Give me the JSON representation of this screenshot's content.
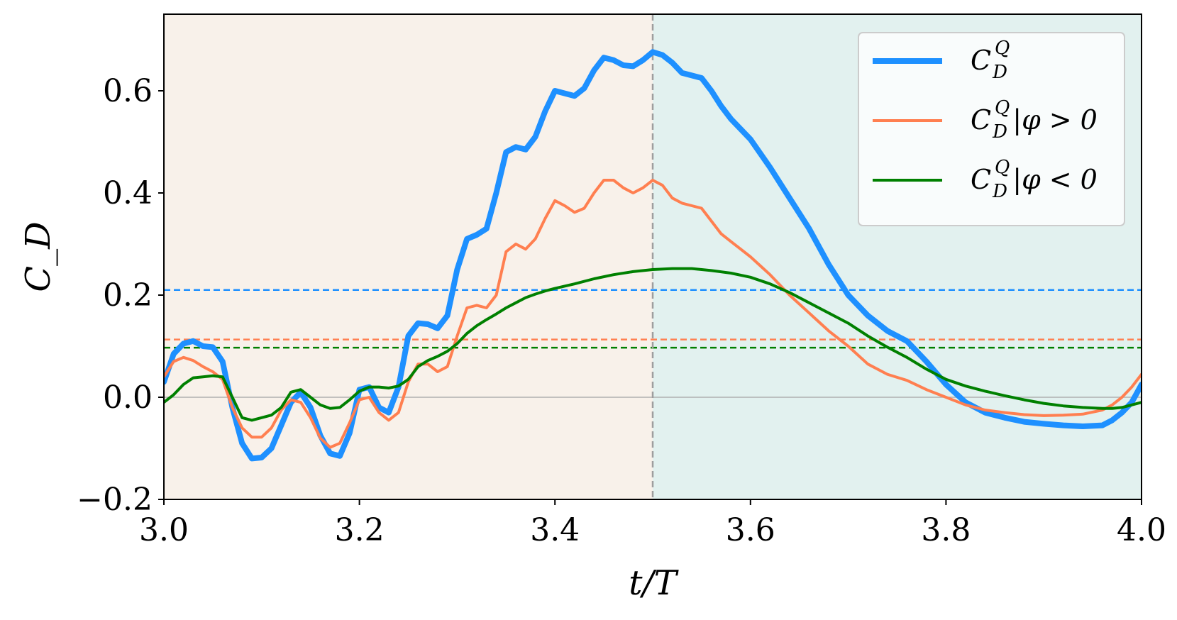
{
  "chart_data": {
    "type": "line",
    "xlabel": "t/T",
    "ylabel": "C_D",
    "xlim": [
      3.0,
      4.0
    ],
    "ylim": [
      -0.2,
      0.75
    ],
    "xticks": [
      3.0,
      3.2,
      3.4,
      3.6,
      3.8,
      4.0
    ],
    "xtick_labels": [
      "3.0",
      "3.2",
      "3.4",
      "3.6",
      "3.8",
      "4.0"
    ],
    "yticks": [
      -0.2,
      0.0,
      0.2,
      0.4,
      0.6
    ],
    "ytick_labels": [
      "−0.2",
      "0.0",
      "0.2",
      "0.4",
      "0.6"
    ],
    "grid": false,
    "legend_position": "top-right",
    "shaded_regions": [
      {
        "x": [
          3.0,
          3.5
        ],
        "color": "#f8f1ea"
      },
      {
        "x": [
          3.5,
          4.0
        ],
        "color": "#e2f1ef"
      }
    ],
    "vertical_lines": [
      {
        "x": 3.5,
        "color": "#9e9e9e",
        "style": "dashed"
      }
    ],
    "horizontal_lines": [
      {
        "y": 0.0,
        "color": "#b0b0b0",
        "style": "solid"
      },
      {
        "y": 0.21,
        "color": "#1e90ff",
        "style": "dashed"
      },
      {
        "y": 0.113,
        "color": "#ff7f50",
        "style": "dashed"
      },
      {
        "y": 0.097,
        "color": "#008000",
        "style": "dashed"
      }
    ],
    "series": [
      {
        "name": "C_D^Q",
        "legend": {
          "base": "C",
          "sub": "D",
          "sup": "Q",
          "suffix": ""
        },
        "color": "#1e90ff",
        "line_width": 8,
        "points": [
          [
            3.0,
            0.03
          ],
          [
            3.01,
            0.085
          ],
          [
            3.02,
            0.105
          ],
          [
            3.03,
            0.11
          ],
          [
            3.04,
            0.1
          ],
          [
            3.05,
            0.098
          ],
          [
            3.06,
            0.07
          ],
          [
            3.07,
            -0.02
          ],
          [
            3.08,
            -0.09
          ],
          [
            3.09,
            -0.12
          ],
          [
            3.1,
            -0.118
          ],
          [
            3.11,
            -0.1
          ],
          [
            3.12,
            -0.055
          ],
          [
            3.13,
            -0.01
          ],
          [
            3.14,
            0.01
          ],
          [
            3.15,
            -0.02
          ],
          [
            3.16,
            -0.075
          ],
          [
            3.17,
            -0.11
          ],
          [
            3.18,
            -0.115
          ],
          [
            3.19,
            -0.07
          ],
          [
            3.2,
            0.015
          ],
          [
            3.21,
            0.02
          ],
          [
            3.22,
            -0.02
          ],
          [
            3.23,
            -0.03
          ],
          [
            3.24,
            0.02
          ],
          [
            3.25,
            0.12
          ],
          [
            3.26,
            0.145
          ],
          [
            3.27,
            0.143
          ],
          [
            3.28,
            0.135
          ],
          [
            3.29,
            0.16
          ],
          [
            3.3,
            0.25
          ],
          [
            3.31,
            0.31
          ],
          [
            3.32,
            0.318
          ],
          [
            3.33,
            0.33
          ],
          [
            3.34,
            0.4
          ],
          [
            3.35,
            0.48
          ],
          [
            3.36,
            0.49
          ],
          [
            3.37,
            0.485
          ],
          [
            3.38,
            0.51
          ],
          [
            3.39,
            0.56
          ],
          [
            3.4,
            0.6
          ],
          [
            3.41,
            0.595
          ],
          [
            3.42,
            0.59
          ],
          [
            3.43,
            0.605
          ],
          [
            3.44,
            0.64
          ],
          [
            3.45,
            0.665
          ],
          [
            3.46,
            0.66
          ],
          [
            3.47,
            0.65
          ],
          [
            3.48,
            0.648
          ],
          [
            3.49,
            0.66
          ],
          [
            3.5,
            0.676
          ],
          [
            3.51,
            0.67
          ],
          [
            3.52,
            0.655
          ],
          [
            3.53,
            0.635
          ],
          [
            3.54,
            0.63
          ],
          [
            3.55,
            0.625
          ],
          [
            3.56,
            0.6
          ],
          [
            3.57,
            0.57
          ],
          [
            3.58,
            0.545
          ],
          [
            3.59,
            0.525
          ],
          [
            3.6,
            0.505
          ],
          [
            3.62,
            0.45
          ],
          [
            3.64,
            0.39
          ],
          [
            3.66,
            0.33
          ],
          [
            3.68,
            0.26
          ],
          [
            3.7,
            0.2
          ],
          [
            3.72,
            0.16
          ],
          [
            3.74,
            0.13
          ],
          [
            3.76,
            0.11
          ],
          [
            3.78,
            0.07
          ],
          [
            3.8,
            0.025
          ],
          [
            3.82,
            -0.01
          ],
          [
            3.84,
            -0.03
          ],
          [
            3.86,
            -0.04
          ],
          [
            3.88,
            -0.048
          ],
          [
            3.9,
            -0.052
          ],
          [
            3.92,
            -0.055
          ],
          [
            3.94,
            -0.057
          ],
          [
            3.96,
            -0.055
          ],
          [
            3.97,
            -0.045
          ],
          [
            3.98,
            -0.03
          ],
          [
            3.99,
            -0.01
          ],
          [
            4.0,
            0.025
          ]
        ]
      },
      {
        "name": "C_D^Q|φ>0",
        "legend": {
          "base": "C",
          "sub": "D",
          "sup": "Q",
          "suffix": "|φ > 0"
        },
        "color": "#ff7f50",
        "line_width": 4,
        "points": [
          [
            3.0,
            0.04
          ],
          [
            3.01,
            0.07
          ],
          [
            3.02,
            0.078
          ],
          [
            3.03,
            0.072
          ],
          [
            3.04,
            0.06
          ],
          [
            3.05,
            0.05
          ],
          [
            3.06,
            0.035
          ],
          [
            3.07,
            -0.02
          ],
          [
            3.08,
            -0.06
          ],
          [
            3.09,
            -0.078
          ],
          [
            3.1,
            -0.078
          ],
          [
            3.11,
            -0.06
          ],
          [
            3.12,
            -0.025
          ],
          [
            3.13,
            -0.005
          ],
          [
            3.14,
            -0.01
          ],
          [
            3.15,
            -0.04
          ],
          [
            3.16,
            -0.08
          ],
          [
            3.17,
            -0.098
          ],
          [
            3.18,
            -0.09
          ],
          [
            3.19,
            -0.05
          ],
          [
            3.2,
            -0.005
          ],
          [
            3.21,
            0.0
          ],
          [
            3.22,
            -0.03
          ],
          [
            3.23,
            -0.045
          ],
          [
            3.24,
            -0.03
          ],
          [
            3.25,
            0.03
          ],
          [
            3.26,
            0.065
          ],
          [
            3.27,
            0.065
          ],
          [
            3.28,
            0.05
          ],
          [
            3.29,
            0.06
          ],
          [
            3.3,
            0.12
          ],
          [
            3.31,
            0.175
          ],
          [
            3.32,
            0.18
          ],
          [
            3.33,
            0.175
          ],
          [
            3.34,
            0.2
          ],
          [
            3.35,
            0.285
          ],
          [
            3.36,
            0.3
          ],
          [
            3.37,
            0.29
          ],
          [
            3.38,
            0.31
          ],
          [
            3.39,
            0.35
          ],
          [
            3.4,
            0.385
          ],
          [
            3.41,
            0.375
          ],
          [
            3.42,
            0.362
          ],
          [
            3.43,
            0.37
          ],
          [
            3.44,
            0.4
          ],
          [
            3.45,
            0.425
          ],
          [
            3.46,
            0.425
          ],
          [
            3.47,
            0.41
          ],
          [
            3.48,
            0.4
          ],
          [
            3.49,
            0.41
          ],
          [
            3.5,
            0.425
          ],
          [
            3.51,
            0.415
          ],
          [
            3.52,
            0.39
          ],
          [
            3.53,
            0.38
          ],
          [
            3.54,
            0.375
          ],
          [
            3.55,
            0.37
          ],
          [
            3.56,
            0.345
          ],
          [
            3.57,
            0.32
          ],
          [
            3.58,
            0.305
          ],
          [
            3.59,
            0.29
          ],
          [
            3.6,
            0.275
          ],
          [
            3.62,
            0.24
          ],
          [
            3.64,
            0.2
          ],
          [
            3.66,
            0.165
          ],
          [
            3.68,
            0.13
          ],
          [
            3.7,
            0.1
          ],
          [
            3.72,
            0.065
          ],
          [
            3.74,
            0.045
          ],
          [
            3.76,
            0.033
          ],
          [
            3.78,
            0.015
          ],
          [
            3.8,
            0.0
          ],
          [
            3.82,
            -0.015
          ],
          [
            3.84,
            -0.025
          ],
          [
            3.86,
            -0.03
          ],
          [
            3.88,
            -0.034
          ],
          [
            3.9,
            -0.036
          ],
          [
            3.92,
            -0.035
          ],
          [
            3.94,
            -0.033
          ],
          [
            3.96,
            -0.025
          ],
          [
            3.97,
            -0.015
          ],
          [
            3.98,
            0.0
          ],
          [
            3.99,
            0.02
          ],
          [
            4.0,
            0.045
          ]
        ]
      },
      {
        "name": "C_D^Q|φ<0",
        "legend": {
          "base": "C",
          "sub": "D",
          "sup": "Q",
          "suffix": "|φ < 0"
        },
        "color": "#008000",
        "line_width": 4,
        "points": [
          [
            3.0,
            -0.01
          ],
          [
            3.01,
            0.005
          ],
          [
            3.02,
            0.025
          ],
          [
            3.03,
            0.038
          ],
          [
            3.04,
            0.04
          ],
          [
            3.05,
            0.042
          ],
          [
            3.06,
            0.04
          ],
          [
            3.07,
            0.0
          ],
          [
            3.08,
            -0.04
          ],
          [
            3.09,
            -0.045
          ],
          [
            3.1,
            -0.04
          ],
          [
            3.11,
            -0.035
          ],
          [
            3.12,
            -0.02
          ],
          [
            3.13,
            0.01
          ],
          [
            3.14,
            0.015
          ],
          [
            3.15,
            0.0
          ],
          [
            3.16,
            -0.015
          ],
          [
            3.17,
            -0.022
          ],
          [
            3.18,
            -0.02
          ],
          [
            3.19,
            -0.005
          ],
          [
            3.2,
            0.012
          ],
          [
            3.21,
            0.02
          ],
          [
            3.22,
            0.02
          ],
          [
            3.23,
            0.018
          ],
          [
            3.24,
            0.022
          ],
          [
            3.25,
            0.035
          ],
          [
            3.26,
            0.06
          ],
          [
            3.27,
            0.072
          ],
          [
            3.28,
            0.08
          ],
          [
            3.29,
            0.09
          ],
          [
            3.3,
            0.105
          ],
          [
            3.31,
            0.125
          ],
          [
            3.32,
            0.14
          ],
          [
            3.33,
            0.152
          ],
          [
            3.34,
            0.163
          ],
          [
            3.35,
            0.175
          ],
          [
            3.36,
            0.185
          ],
          [
            3.37,
            0.195
          ],
          [
            3.38,
            0.202
          ],
          [
            3.39,
            0.208
          ],
          [
            3.4,
            0.213
          ],
          [
            3.42,
            0.222
          ],
          [
            3.44,
            0.232
          ],
          [
            3.46,
            0.24
          ],
          [
            3.48,
            0.246
          ],
          [
            3.5,
            0.25
          ],
          [
            3.52,
            0.252
          ],
          [
            3.54,
            0.252
          ],
          [
            3.56,
            0.248
          ],
          [
            3.58,
            0.243
          ],
          [
            3.6,
            0.235
          ],
          [
            3.62,
            0.222
          ],
          [
            3.64,
            0.205
          ],
          [
            3.66,
            0.185
          ],
          [
            3.68,
            0.165
          ],
          [
            3.7,
            0.145
          ],
          [
            3.72,
            0.12
          ],
          [
            3.74,
            0.098
          ],
          [
            3.76,
            0.078
          ],
          [
            3.78,
            0.055
          ],
          [
            3.8,
            0.035
          ],
          [
            3.82,
            0.022
          ],
          [
            3.84,
            0.012
          ],
          [
            3.86,
            0.003
          ],
          [
            3.88,
            -0.005
          ],
          [
            3.9,
            -0.012
          ],
          [
            3.92,
            -0.017
          ],
          [
            3.94,
            -0.02
          ],
          [
            3.96,
            -0.022
          ],
          [
            3.97,
            -0.022
          ],
          [
            3.98,
            -0.02
          ],
          [
            3.99,
            -0.015
          ],
          [
            4.0,
            -0.01
          ]
        ]
      }
    ]
  }
}
